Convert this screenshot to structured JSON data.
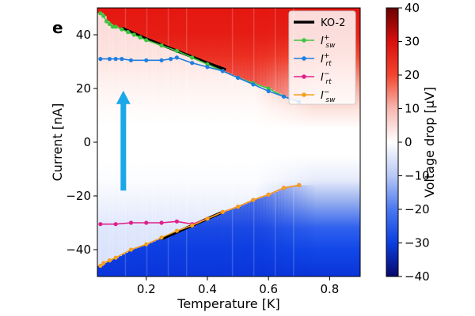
{
  "chart_data": {
    "type": "heatmap",
    "panel_label": "e",
    "xlabel": "Temperature [K]",
    "ylabel": "Current [nA]",
    "xlim": [
      0.04,
      0.9
    ],
    "ylim": [
      -50,
      50
    ],
    "xticks": [
      0.2,
      0.4,
      0.6,
      0.8
    ],
    "xtick_labels": [
      "0.2",
      "0.4",
      "0.6",
      "0.8"
    ],
    "yticks": [
      -40,
      -20,
      0,
      20,
      40
    ],
    "ytick_labels": [
      "−40",
      "−20",
      "0",
      "20",
      "40"
    ],
    "grid": false,
    "colorbar": {
      "label": "Voltage drop [μV]",
      "range": [
        -40,
        40
      ],
      "ticks": [
        -40,
        -30,
        -20,
        -10,
        0,
        10,
        20,
        30,
        40
      ],
      "tick_labels": [
        "−40",
        "−30",
        "−20",
        "−10",
        "0",
        "10",
        "20",
        "30",
        "40"
      ],
      "colormap": [
        "#08086b",
        "#0b3fe0",
        "#4a78f0",
        "#b8c8f5",
        "#ffffff",
        "#f7b7b0",
        "#f2452e",
        "#d8100e",
        "#6a0000"
      ]
    },
    "legend": {
      "placement": "top-right",
      "entries": [
        {
          "label_main": "KO-2",
          "label_sup": "",
          "label_sub": "",
          "color": "#000000",
          "marker": false
        },
        {
          "label_main": "I",
          "label_sup": "+",
          "label_sub": "sw",
          "color": "#3ec43e",
          "marker": true
        },
        {
          "label_main": "I",
          "label_sup": "+",
          "label_sub": "rt",
          "color": "#1f7fe0",
          "marker": true
        },
        {
          "label_main": "I",
          "label_sup": "−",
          "label_sub": "rt",
          "color": "#e0208a",
          "marker": true
        },
        {
          "label_main": "I",
          "label_sup": "−",
          "label_sub": "sw",
          "color": "#f5a01a",
          "marker": true
        }
      ]
    },
    "series": [
      {
        "name": "KO-2",
        "color": "#000000",
        "x": [
          0.12,
          0.2,
          0.3,
          0.4,
          0.46
        ],
        "y": [
          42.5,
          38.5,
          34,
          29.5,
          27
        ]
      },
      {
        "name": "KO-2 negative",
        "color": "#000000",
        "x": [
          0.25,
          0.3,
          0.35,
          0.4,
          0.45
        ],
        "y": [
          -36,
          -33.5,
          -31,
          -28.5,
          -26
        ]
      },
      {
        "name": "I_sw+",
        "color": "#3ec43e",
        "x": [
          0.05,
          0.06,
          0.07,
          0.08,
          0.09,
          0.1,
          0.12,
          0.14,
          0.16,
          0.18,
          0.2,
          0.25,
          0.3,
          0.35,
          0.4,
          0.45,
          0.5,
          0.55,
          0.6,
          0.65,
          0.7
        ],
        "y": [
          48,
          47,
          45,
          44,
          43,
          43,
          42,
          41,
          40,
          39,
          38,
          36,
          34,
          31.5,
          29,
          26.5,
          24,
          22,
          20,
          17,
          15
        ]
      },
      {
        "name": "I_rt+",
        "color": "#1f7fe0",
        "x": [
          0.05,
          0.08,
          0.1,
          0.12,
          0.15,
          0.2,
          0.25,
          0.28,
          0.3,
          0.35,
          0.4,
          0.45,
          0.5,
          0.55,
          0.6,
          0.65,
          0.7
        ],
        "y": [
          31,
          31,
          31,
          31,
          30.5,
          30.5,
          30.5,
          31,
          31.5,
          29.5,
          28,
          26.5,
          24,
          21.5,
          19,
          17,
          15
        ]
      },
      {
        "name": "I_rt−",
        "color": "#e0208a",
        "x": [
          0.05,
          0.1,
          0.15,
          0.2,
          0.25,
          0.3,
          0.35,
          0.4,
          0.45,
          0.5,
          0.55,
          0.6,
          0.65,
          0.7
        ],
        "y": [
          -30.5,
          -30.5,
          -30,
          -30,
          -30,
          -29.5,
          -30.5,
          -28.5,
          -26,
          -24,
          -21.5,
          -19.5,
          -17,
          -16
        ]
      },
      {
        "name": "I_sw−",
        "color": "#f5a01a",
        "x": [
          0.05,
          0.06,
          0.08,
          0.1,
          0.15,
          0.2,
          0.25,
          0.3,
          0.35,
          0.4,
          0.45,
          0.5,
          0.55,
          0.6,
          0.65,
          0.7
        ],
        "y": [
          -46,
          -45,
          -44,
          -43,
          -40,
          -38,
          -35.5,
          -33,
          -31,
          -28.5,
          -26,
          -24,
          -21.5,
          -19.5,
          -17,
          -16
        ]
      }
    ],
    "annotations": [
      {
        "type": "arrow",
        "direction": "up",
        "color": "#1aa8e8",
        "x": 0.125,
        "y_from": -18,
        "y_to": 18
      }
    ]
  }
}
